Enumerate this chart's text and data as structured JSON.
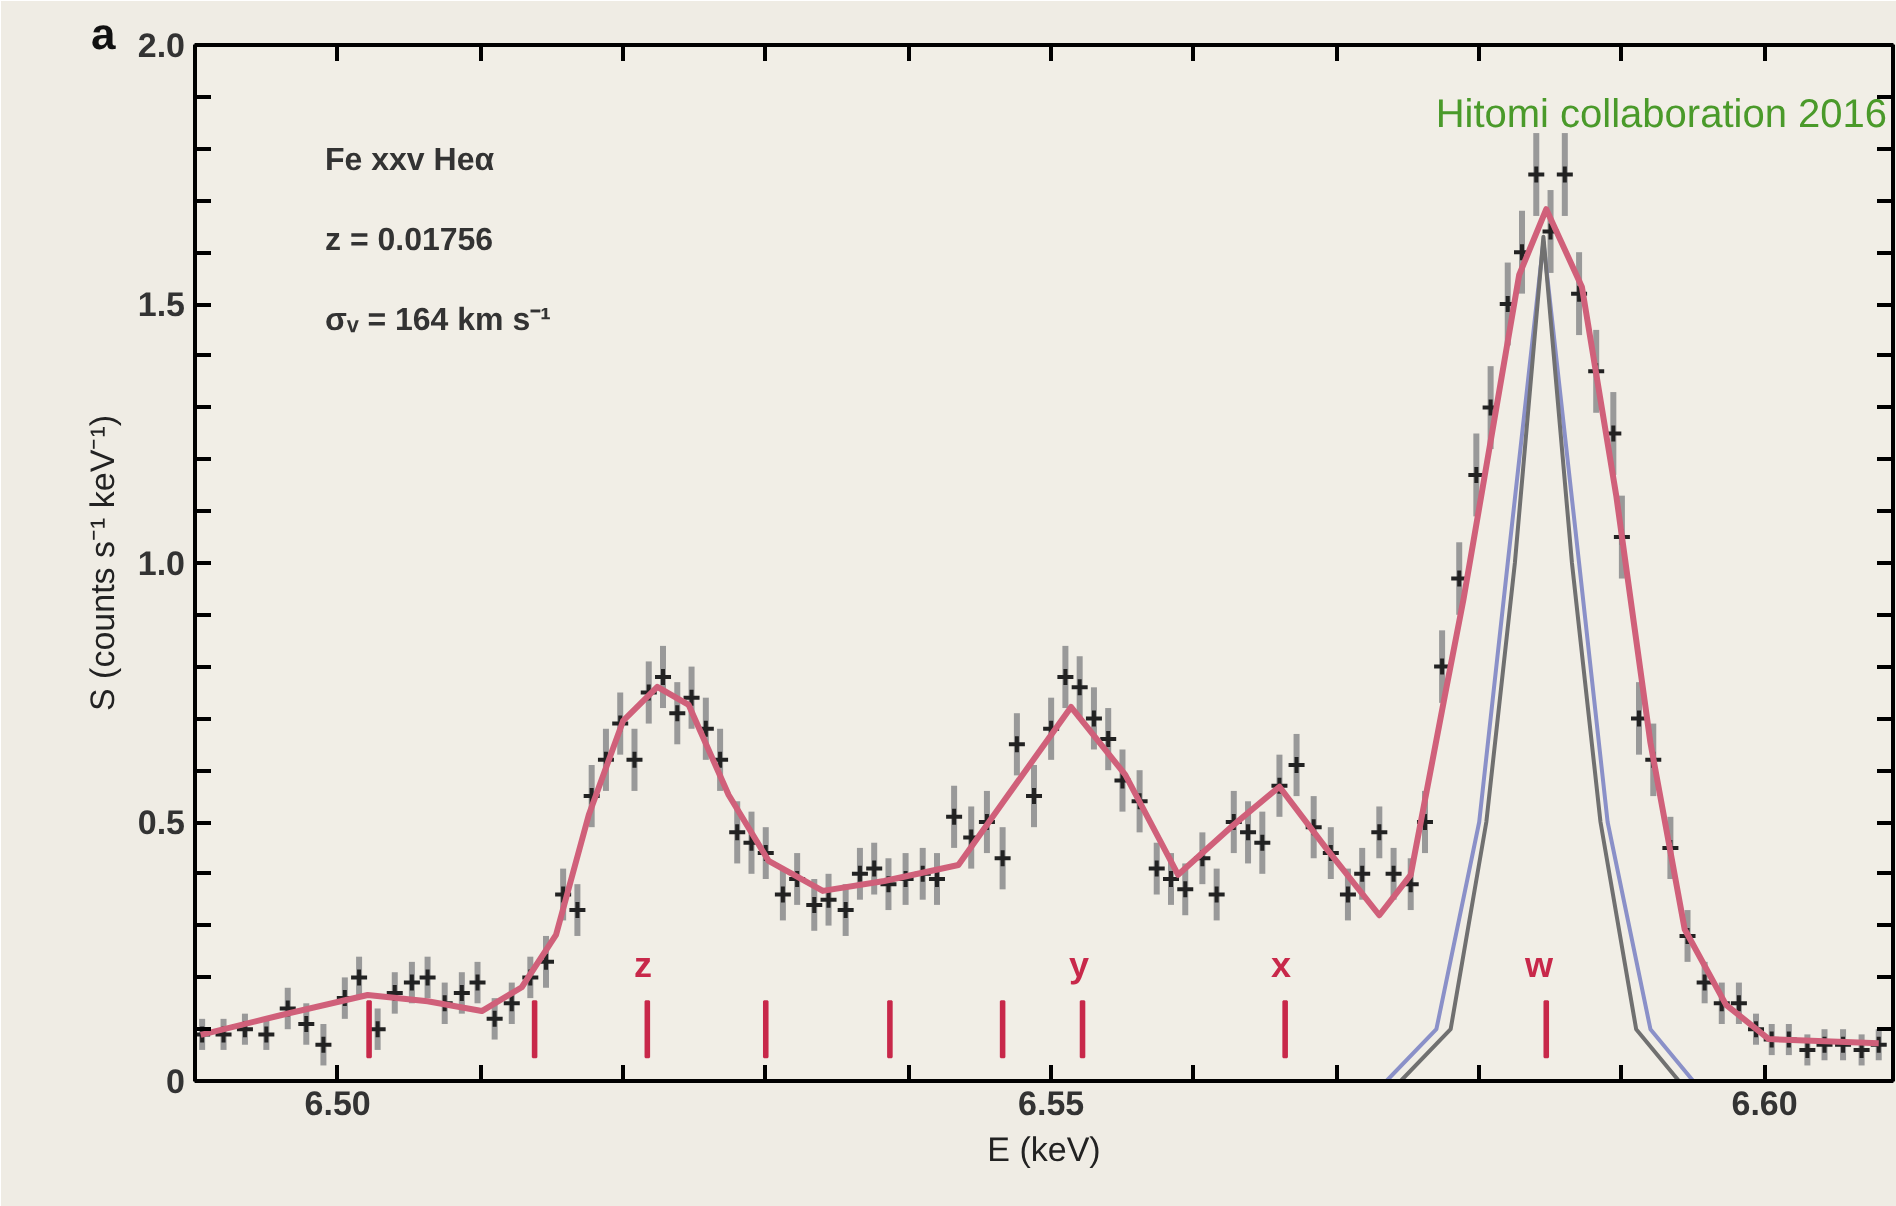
{
  "chart_data": {
    "type": "line",
    "xlabel": "E (keV)",
    "ylabel": "S (counts s⁻¹ keV⁻¹)",
    "annotations": [
      "a",
      "Fe xxv Heα",
      "z = 0.01756",
      "σᵥ = 164 km s⁻¹",
      "Hitomi collaboration 2016",
      "z",
      "y",
      "x",
      "w"
    ],
    "xlim": [
      6.49,
      6.609
    ],
    "ylim": [
      0,
      2.0
    ],
    "xticks": [
      {
        "value": 6.5,
        "label": "6.50"
      },
      {
        "value": 6.51,
        "label": null
      },
      {
        "value": 6.52,
        "label": null
      },
      {
        "value": 6.53,
        "label": null
      },
      {
        "value": 6.54,
        "label": null
      },
      {
        "value": 6.55,
        "label": "6.55"
      },
      {
        "value": 6.56,
        "label": null
      },
      {
        "value": 6.57,
        "label": null
      },
      {
        "value": 6.58,
        "label": null
      },
      {
        "value": 6.59,
        "label": null
      },
      {
        "value": 6.6,
        "label": "6.60"
      }
    ],
    "yticks": [
      0,
      {
        "value": 0.1,
        "label": null
      },
      {
        "value": 0.2,
        "label": null
      },
      {
        "value": 0.3,
        "label": null
      },
      {
        "value": 0.4,
        "label": null
      },
      0.5,
      {
        "value": 0.6,
        "label": null
      },
      {
        "value": 0.7,
        "label": null
      },
      {
        "value": 0.8,
        "label": null
      },
      {
        "value": 0.9,
        "label": null
      },
      {
        "value": 1.0,
        "label": "1.0"
      },
      {
        "value": 1.1,
        "label": null
      },
      {
        "value": 1.2,
        "label": null
      },
      {
        "value": 1.3,
        "label": null
      },
      {
        "value": 1.4,
        "label": null
      },
      1.5,
      {
        "value": 1.6,
        "label": null
      },
      {
        "value": 1.7,
        "label": null
      },
      {
        "value": 1.8,
        "label": null
      },
      {
        "value": 1.9,
        "label": null
      },
      {
        "value": 2.0,
        "label": "2.0"
      }
    ],
    "grid": false,
    "series": [
      {
        "color": "#8a90c8",
        "x": [
          6.5735,
          6.577,
          6.58,
          6.582,
          6.5845,
          6.587,
          6.589,
          6.592,
          6.595
        ],
        "values": [
          0,
          0.1,
          0.5,
          1.0,
          1.62,
          1.0,
          0.5,
          0.1,
          0
        ]
      },
      {
        "color": "#707070",
        "x": [
          6.5745,
          6.578,
          6.5805,
          6.5825,
          6.5845,
          6.5865,
          6.5885,
          6.591,
          6.594
        ],
        "values": [
          0,
          0.1,
          0.5,
          1.0,
          1.63,
          1.0,
          0.5,
          0.1,
          0
        ]
      },
      {
        "type": "scatter",
        "color": "#222222",
        "marker": "cross",
        "x": [
          6.4905,
          6.492,
          6.4935,
          6.495,
          6.4965,
          6.4978,
          6.499,
          6.5005,
          6.5015,
          6.5028,
          6.504,
          6.5052,
          6.5063,
          6.5075,
          6.5087,
          6.5098,
          6.511,
          6.5122,
          6.5135,
          6.5146,
          6.5158,
          6.5168,
          6.5178,
          6.5188,
          6.5198,
          6.5208,
          6.5218,
          6.5228,
          6.5238,
          6.5248,
          6.5258,
          6.5268,
          6.528,
          6.529,
          6.53,
          6.5312,
          6.5322,
          6.5334,
          6.5344,
          6.5356,
          6.5366,
          6.5376,
          6.5386,
          6.5398,
          6.541,
          6.542,
          6.5432,
          6.5444,
          6.5455,
          6.5466,
          6.5476,
          6.5488,
          6.55,
          6.551,
          6.552,
          6.553,
          6.554,
          6.555,
          6.5562,
          6.5574,
          6.5584,
          6.5594,
          6.5606,
          6.5616,
          6.5628,
          6.5638,
          6.5648,
          6.566,
          6.5672,
          6.5684,
          6.5696,
          6.5708,
          6.5718,
          6.573,
          6.574,
          6.5752,
          6.5762,
          6.5774,
          6.5786,
          6.5798,
          6.5808,
          6.582,
          6.583,
          6.584,
          6.585,
          6.586,
          6.587,
          6.5882,
          6.5894,
          6.59,
          6.5912,
          6.5922,
          6.5934,
          6.5946,
          6.5958,
          6.597,
          6.5982,
          6.5994,
          6.6005,
          6.6017,
          6.603,
          6.6042,
          6.6055,
          6.6068,
          6.608
        ],
        "values": [
          0.09,
          0.09,
          0.1,
          0.09,
          0.14,
          0.11,
          0.07,
          0.16,
          0.2,
          0.1,
          0.17,
          0.19,
          0.2,
          0.15,
          0.17,
          0.19,
          0.12,
          0.15,
          0.2,
          0.23,
          0.36,
          0.33,
          0.55,
          0.62,
          0.69,
          0.62,
          0.75,
          0.78,
          0.71,
          0.74,
          0.68,
          0.62,
          0.48,
          0.46,
          0.44,
          0.36,
          0.39,
          0.34,
          0.35,
          0.33,
          0.4,
          0.41,
          0.38,
          0.39,
          0.4,
          0.39,
          0.51,
          0.47,
          0.5,
          0.43,
          0.65,
          0.55,
          0.68,
          0.78,
          0.76,
          0.7,
          0.66,
          0.58,
          0.54,
          0.41,
          0.39,
          0.37,
          0.43,
          0.36,
          0.5,
          0.48,
          0.46,
          0.57,
          0.61,
          0.49,
          0.44,
          0.36,
          0.4,
          0.48,
          0.4,
          0.38,
          0.5,
          0.8,
          0.97,
          1.17,
          1.3,
          1.5,
          1.6,
          1.75,
          1.64,
          1.75,
          1.52,
          1.37,
          1.25,
          1.05,
          0.7,
          0.62,
          0.45,
          0.28,
          0.19,
          0.15,
          0.15,
          0.1,
          0.08,
          0.08,
          0.06,
          0.07,
          0.07,
          0.06,
          0.07
        ],
        "errors": [
          0.03,
          0.03,
          0.03,
          0.03,
          0.04,
          0.04,
          0.04,
          0.04,
          0.04,
          0.04,
          0.04,
          0.04,
          0.04,
          0.04,
          0.04,
          0.04,
          0.04,
          0.04,
          0.04,
          0.05,
          0.05,
          0.05,
          0.06,
          0.06,
          0.06,
          0.06,
          0.06,
          0.06,
          0.06,
          0.06,
          0.06,
          0.06,
          0.06,
          0.06,
          0.05,
          0.05,
          0.05,
          0.05,
          0.05,
          0.05,
          0.05,
          0.05,
          0.05,
          0.05,
          0.05,
          0.05,
          0.06,
          0.06,
          0.06,
          0.06,
          0.06,
          0.06,
          0.06,
          0.06,
          0.06,
          0.06,
          0.06,
          0.06,
          0.06,
          0.05,
          0.05,
          0.05,
          0.05,
          0.05,
          0.06,
          0.06,
          0.06,
          0.06,
          0.06,
          0.06,
          0.05,
          0.05,
          0.05,
          0.05,
          0.05,
          0.05,
          0.06,
          0.07,
          0.07,
          0.08,
          0.08,
          0.08,
          0.08,
          0.08,
          0.08,
          0.08,
          0.08,
          0.08,
          0.08,
          0.08,
          0.07,
          0.07,
          0.06,
          0.05,
          0.04,
          0.04,
          0.04,
          0.03,
          0.03,
          0.03,
          0.03,
          0.03,
          0.03,
          0.03,
          0.03
        ]
      },
      {
        "color": "#d0607a",
        "x": [
          6.4904,
          6.496,
          6.5021,
          6.5063,
          6.5101,
          6.5129,
          6.5153,
          6.5176,
          6.52,
          6.5224,
          6.5246,
          6.5274,
          6.5302,
          6.534,
          6.5383,
          6.5435,
          6.5467,
          6.5514,
          6.5552,
          6.5589,
          6.5626,
          6.566,
          6.5692,
          6.573,
          6.5752,
          6.5776,
          6.5789,
          6.5809,
          6.5828,
          6.5847,
          6.5872,
          6.5896,
          6.592,
          6.5944,
          6.5973,
          6.6003,
          6.608
        ],
        "values": [
          0.089,
          0.127,
          0.166,
          0.154,
          0.135,
          0.181,
          0.282,
          0.514,
          0.695,
          0.761,
          0.726,
          0.552,
          0.425,
          0.367,
          0.386,
          0.417,
          0.541,
          0.722,
          0.591,
          0.398,
          0.49,
          0.568,
          0.452,
          0.32,
          0.398,
          0.745,
          0.93,
          1.251,
          1.556,
          1.683,
          1.533,
          1.131,
          0.653,
          0.293,
          0.147,
          0.081,
          0.073
        ]
      },
      {
        "type": "bar",
        "color": "#c8284a",
        "x": [
          6.5022,
          6.5138,
          6.5217,
          6.53,
          6.5387,
          6.5466,
          6.5522,
          6.5664,
          6.5847
        ],
        "base": [
          0.046,
          0.046,
          0.046,
          0.046,
          0.046,
          0.046,
          0.046,
          0.046,
          0.046
        ],
        "values": [
          0.108,
          0.108,
          0.108,
          0.108,
          0.108,
          0.108,
          0.108,
          0.108,
          0.108
        ]
      }
    ]
  }
}
